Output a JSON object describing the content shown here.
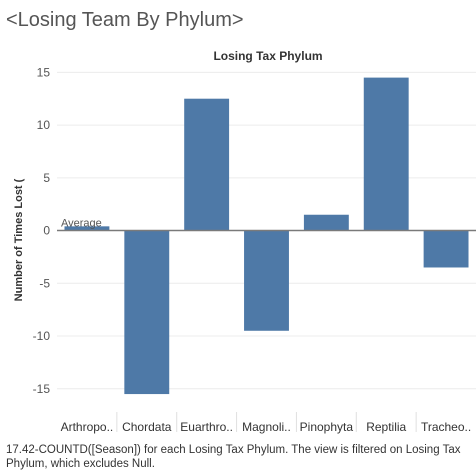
{
  "title": "<Losing Team By Phylum>",
  "caption": "17.42-COUNTD([Season]) for each Losing Tax Phylum. The view is filtered on Losing Tax Phylum, which excludes Null.",
  "chart_data": {
    "type": "bar",
    "column_header": "Losing Tax Phylum",
    "ylabel": "Number of Times Lost (",
    "categories": [
      "Arthropo..",
      "Chordata",
      "Euarthro..",
      "Magnoli..",
      "Pinophyta",
      "Reptilia",
      "Tracheo.."
    ],
    "values": [
      0.4,
      -15.5,
      12.5,
      -9.5,
      1.5,
      14.5,
      -3.5
    ],
    "ylim": [
      -17.2,
      15.6
    ],
    "yticks": [
      15,
      10,
      5,
      0,
      -5,
      -10,
      -15
    ],
    "reference_line": {
      "label": "Average",
      "value": 0
    },
    "bar_color": "#4e79a7",
    "grid": true
  }
}
